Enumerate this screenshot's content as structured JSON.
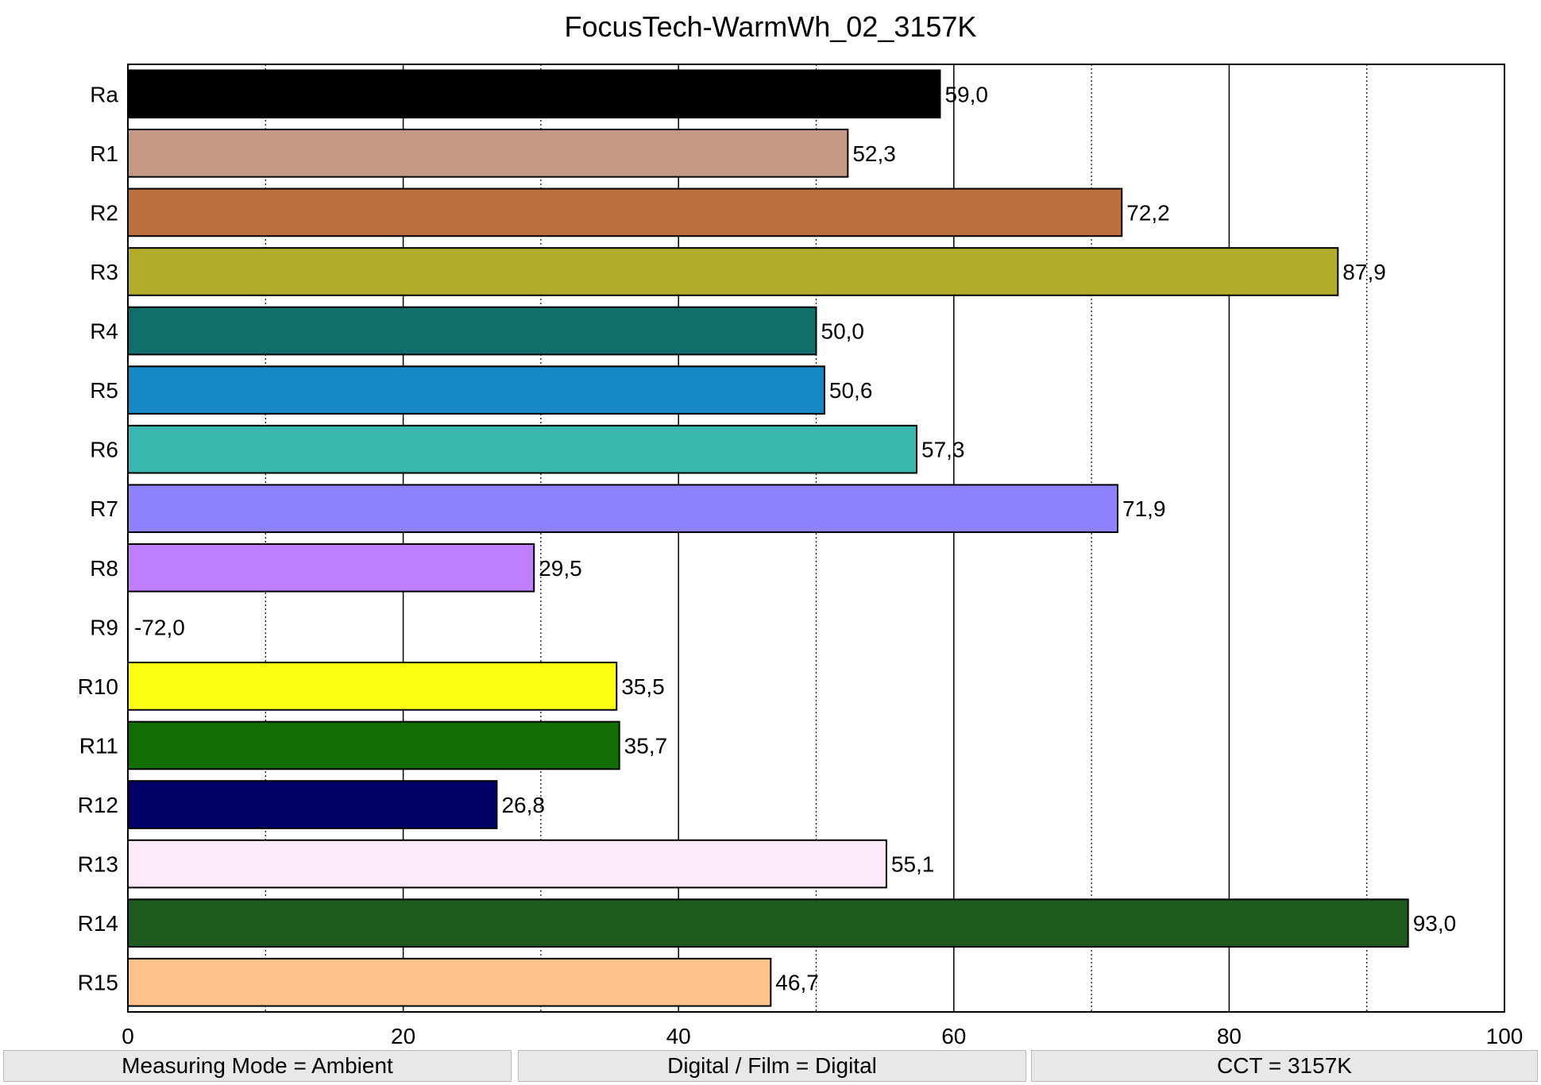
{
  "title": "FocusTech-WarmWh_02_3157K",
  "footer": {
    "measuring_mode": "Measuring Mode = Ambient",
    "digital_film": "Digital / Film = Digital",
    "cct": "CCT = 3157K"
  },
  "chart_data": {
    "type": "bar",
    "orientation": "horizontal",
    "title": "FocusTech-WarmWh_02_3157K",
    "xlabel": "",
    "ylabel": "",
    "xlim": [
      0,
      100
    ],
    "x_ticks": [
      0,
      20,
      40,
      60,
      80,
      100
    ],
    "minor_gridlines": [
      10,
      30,
      50,
      70,
      90
    ],
    "grid": true,
    "categories": [
      "Ra",
      "R1",
      "R2",
      "R3",
      "R4",
      "R5",
      "R6",
      "R7",
      "R8",
      "R9",
      "R10",
      "R11",
      "R12",
      "R13",
      "R14",
      "R15"
    ],
    "values": [
      59.0,
      52.3,
      72.2,
      87.9,
      50.0,
      50.6,
      57.3,
      71.9,
      29.5,
      -72.0,
      35.5,
      35.7,
      26.8,
      55.1,
      93.0,
      46.7
    ],
    "value_labels": [
      "59,0",
      "52,3",
      "72,2",
      "87,9",
      "50,0",
      "50,6",
      "57,3",
      "71,9",
      "29,5",
      "-72,0",
      "35,5",
      "35,7",
      "26,8",
      "55,1",
      "93,0",
      "46,7"
    ],
    "colors": [
      "#000000",
      "#c49a85",
      "#bd6f40",
      "#b2ac2c",
      "#116e6b",
      "#1588c5",
      "#37b7ad",
      "#8f82ff",
      "#bf7fff",
      "#ff0000",
      "#ffff13",
      "#126e04",
      "#010167",
      "#feeaf9",
      "#1f5a1f",
      "#fec28a"
    ]
  }
}
